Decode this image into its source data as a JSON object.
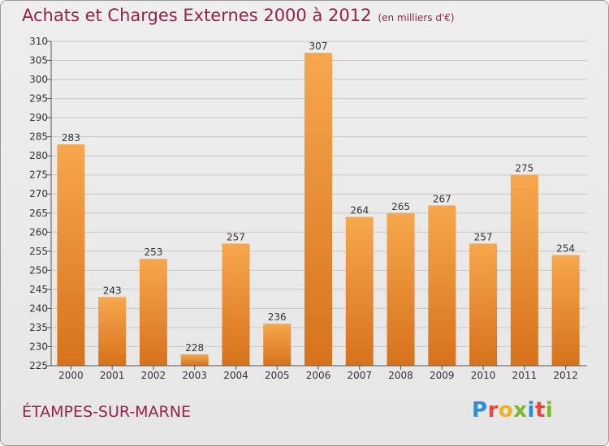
{
  "header": {
    "title": "Achats et Charges Externes 2000 à 2012",
    "unit": "(en milliers d'€)"
  },
  "footer": {
    "commune": "ÉTAMPES-SUR-MARNE",
    "logo_letters": [
      "P",
      "r",
      "o",
      "x",
      "i",
      "t",
      "i"
    ],
    "logo_colors": [
      "#2a8fd6",
      "#e8483c",
      "#f0b020",
      "#7ab82d",
      "#2a8fd6",
      "#e8483c",
      "#7ab82d"
    ]
  },
  "colors": {
    "bar_top": "#f6a74d",
    "bar_bottom": "#d7721c",
    "grid": "#c8c8c8",
    "axis": "#555555",
    "text": "#333333"
  },
  "chart_data": {
    "type": "bar",
    "categories": [
      "2000",
      "2001",
      "2002",
      "2003",
      "2004",
      "2005",
      "2006",
      "2007",
      "2008",
      "2009",
      "2010",
      "2011",
      "2012"
    ],
    "values": [
      283,
      243,
      253,
      228,
      257,
      236,
      307,
      264,
      265,
      267,
      257,
      275,
      254
    ],
    "ylim": [
      225,
      310
    ],
    "yticks": [
      225,
      230,
      235,
      240,
      245,
      250,
      255,
      260,
      265,
      270,
      275,
      280,
      285,
      290,
      295,
      300,
      305,
      310
    ],
    "grid": true,
    "data_labels": true
  }
}
